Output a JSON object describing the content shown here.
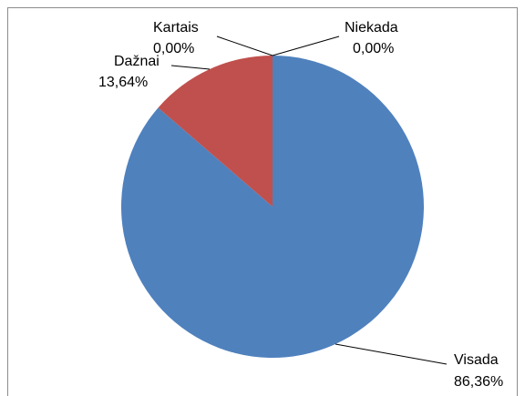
{
  "chart_data": {
    "type": "pie",
    "title": "",
    "categories": [
      "Visada",
      "Dažnai",
      "Kartais",
      "Niekada"
    ],
    "values": [
      86.36,
      13.64,
      0.0,
      0.0
    ],
    "value_labels": [
      "86,36%",
      "13,64%",
      "0,00%",
      "0,00%"
    ],
    "colors": [
      "#4f81bd",
      "#c0504d",
      "#9bbb59",
      "#8064a2"
    ],
    "legend": "none",
    "data_labels": "outside with leader lines"
  }
}
